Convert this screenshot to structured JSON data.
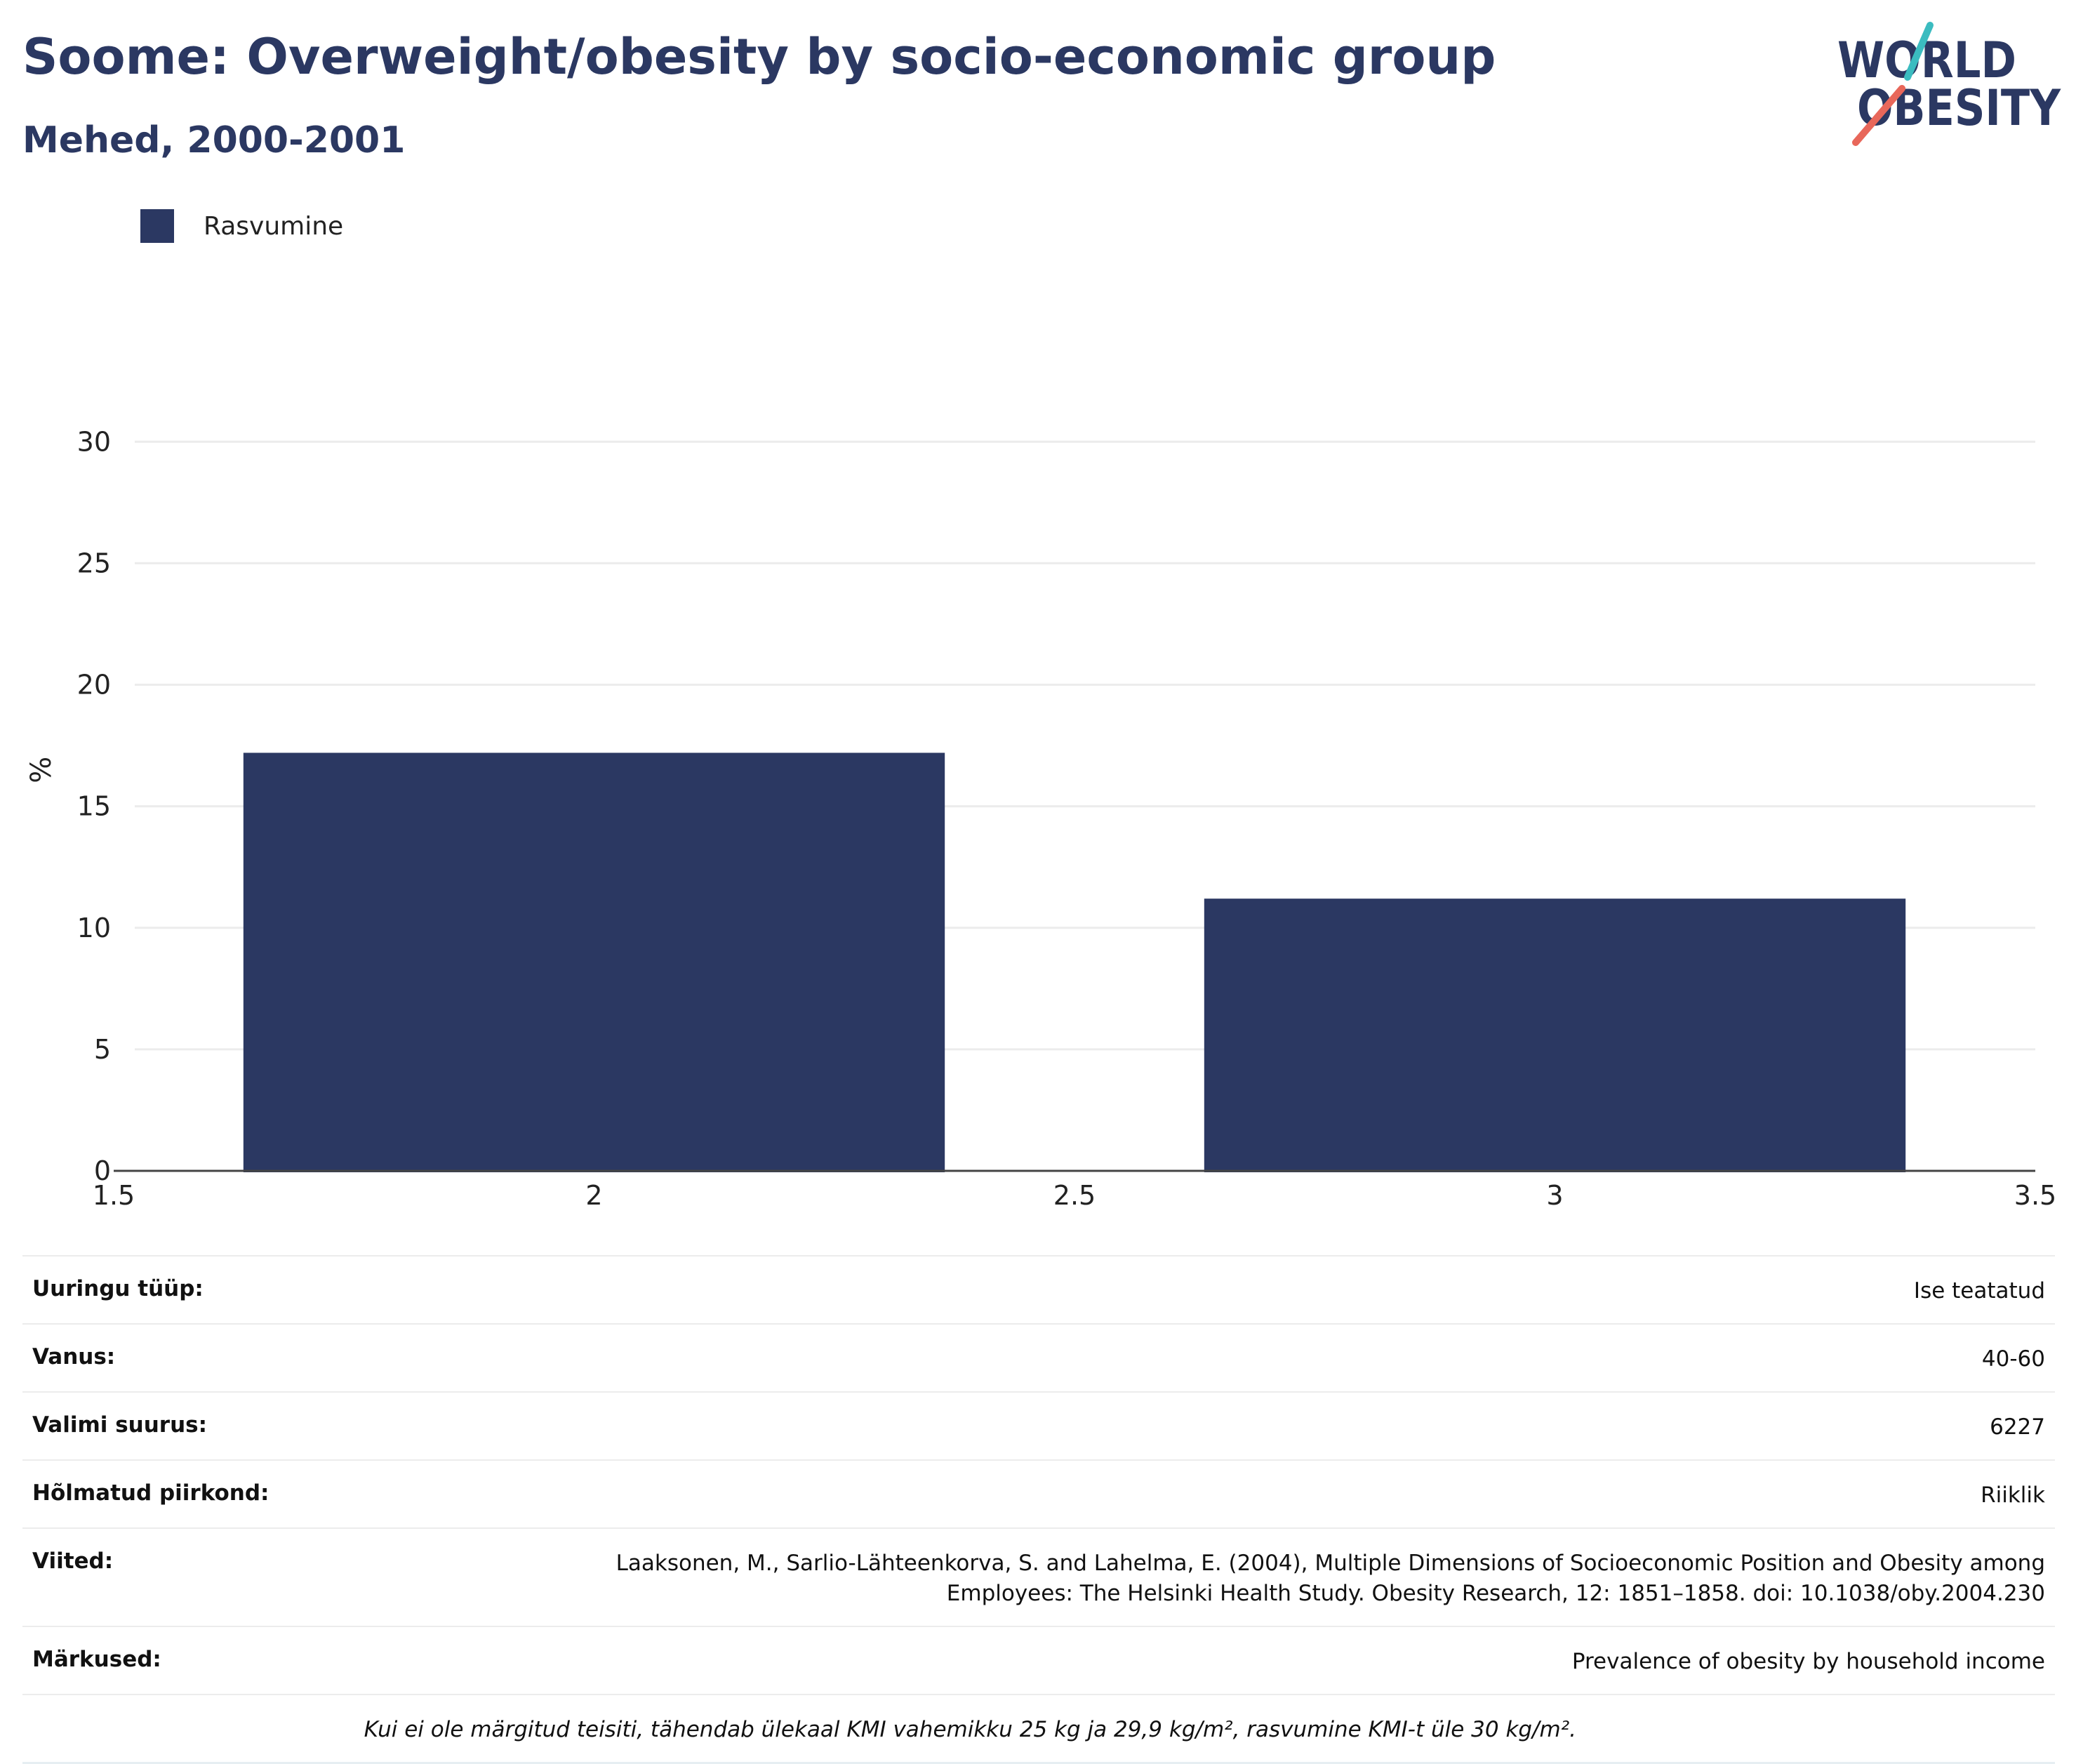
{
  "header": {
    "title": "Soome: Overweight/obesity by socio-economic group",
    "subtitle": "Mehed, 2000-2001",
    "logo_text_top": "WORLD",
    "logo_text_bottom": "OBESITY"
  },
  "colors": {
    "bar": "#2b3862",
    "title": "#2b3862",
    "logo_teal": "#3bbcc0",
    "logo_coral": "#e8675a",
    "grid": "#ececec"
  },
  "chart_data": {
    "type": "bar",
    "title": "Soome: Overweight/obesity by socio-economic group",
    "subtitle": "Mehed, 2000-2001",
    "ylabel": "%",
    "xlabel": "",
    "xlim": [
      1.5,
      3.5
    ],
    "ylim": [
      0,
      32
    ],
    "xticks": [
      1.5,
      2,
      2.5,
      3,
      3.5
    ],
    "yticks": [
      0,
      5,
      10,
      15,
      20,
      25,
      30
    ],
    "bar_width": 0.73,
    "grid": true,
    "legend_position": "top-left",
    "series": [
      {
        "name": "Rasvumine",
        "x": [
          2,
          3
        ],
        "values": [
          17.2,
          11.2
        ]
      }
    ]
  },
  "table": {
    "rows": [
      {
        "key": "Uuringu tüüp:",
        "value": "Ise teatatud"
      },
      {
        "key": "Vanus:",
        "value": "40-60"
      },
      {
        "key": "Valimi suurus:",
        "value": "6227"
      },
      {
        "key": "Hõlmatud piirkond:",
        "value": "Riiklik"
      },
      {
        "key": "Viited:",
        "value": "Laaksonen, M., Sarlio-Lähteenkorva, S. and Lahelma, E. (2004), Multiple Dimensions of Socioeconomic Position and Obesity among Employees: The Helsinki Health Study. Obesity Research, 12: 1851–1858. doi: 10.1038/oby.2004.230"
      },
      {
        "key": "Märkused:",
        "value": "Prevalence of obesity by household income"
      }
    ],
    "footnote": "Kui ei ole märgitud teisiti, tähendab ülekaal KMI vahemikku 25 kg ja 29,9 kg/m², rasvumine KMI-t üle 30 kg/m²."
  }
}
